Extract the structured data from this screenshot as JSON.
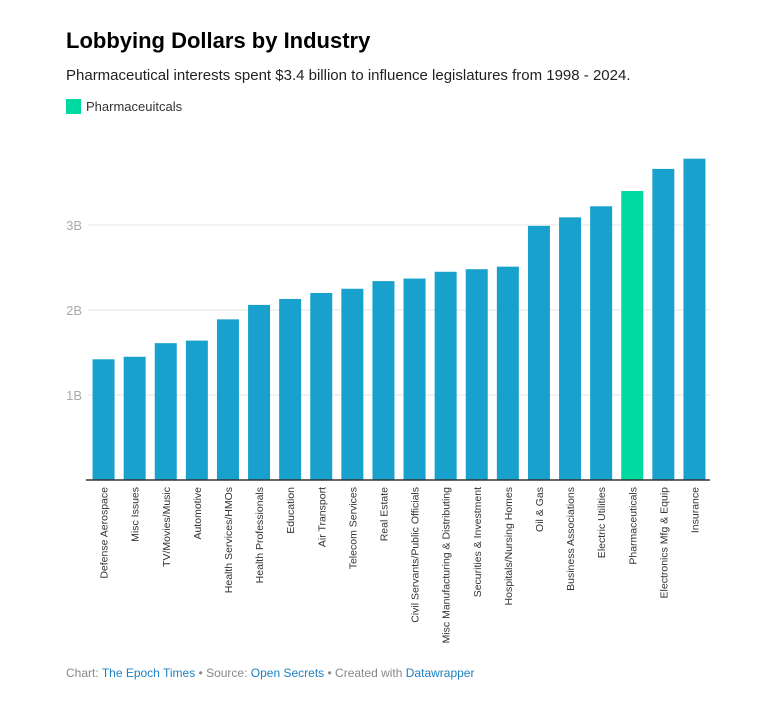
{
  "title": "Lobbying Dollars by Industry",
  "subtitle": "Pharmaceutical interests spent $3.4 billion to influence legislatures from 1998 - 2024.",
  "legend": {
    "label": "Pharmaceuitcals",
    "color": "#00d9a0"
  },
  "footer": {
    "chart_prefix": "Chart:",
    "chart_by": "The Epoch Times",
    "sep1": "•",
    "source_prefix": "Source:",
    "source": "Open Secrets",
    "sep2": "•",
    "created_prefix": "Created with",
    "created_with": "Datawrapper"
  },
  "chart_data": {
    "type": "bar",
    "title": "Lobbying Dollars by Industry",
    "ylim": [
      0,
      3.8
    ],
    "y_ticks": [
      {
        "value": 1,
        "label": "1B"
      },
      {
        "value": 2,
        "label": "2B"
      },
      {
        "value": 3,
        "label": "3B"
      }
    ],
    "y_unit": "billion USD",
    "grid": true,
    "legend_position": "top-left",
    "colors": {
      "default": "#18a1cd",
      "highlight": "#00d9a0"
    },
    "highlight": "Pharmaceuticals",
    "categories": [
      "Defense Aerospace",
      "Misc Issues",
      "TV/Movies/Music",
      "Automotive",
      "Health Services/HMOs",
      "Health Professionals",
      "Education",
      "Air Transport",
      "Telecom Services",
      "Real Estate",
      "Civil Servants/Public Officials",
      "Misc Manufacturing & Distributing",
      "Securities & Investment",
      "Hospitals/Nursing Homes",
      "Oil & Gas",
      "Business Associations",
      "Electric Utilities",
      "Pharmaceuticals",
      "Electronics Mfg & Equip",
      "Insurance"
    ],
    "values": [
      1.42,
      1.45,
      1.61,
      1.64,
      1.89,
      2.06,
      2.13,
      2.2,
      2.25,
      2.34,
      2.37,
      2.45,
      2.48,
      2.51,
      2.99,
      3.09,
      3.22,
      3.4,
      3.66,
      3.78
    ]
  }
}
